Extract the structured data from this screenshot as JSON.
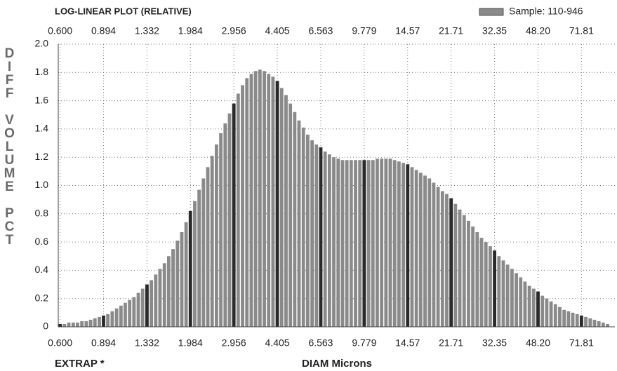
{
  "chart_data": {
    "type": "bar",
    "title": "LOG-LINEAR PLOT (RELATIVE)",
    "x_label": "DIAM Microns",
    "y_label": "DIFF VOLUME PCT",
    "annotation": "EXTRAP *",
    "xscale": "log",
    "grid": true,
    "legend": "upper right",
    "tick_bar_color": "#2a2a2a",
    "xlim": [
      0.59,
      97.6
    ],
    "ylim": [
      0,
      2
    ],
    "xticks": [
      {
        "value": 0.6,
        "label": "0.600"
      },
      0.894,
      1.332,
      1.984,
      2.956,
      4.405,
      6.563,
      9.779,
      14.57,
      21.71,
      32.35,
      {
        "value": 48.2,
        "label": "48.20"
      },
      71.81
    ],
    "yticks": [
      0,
      0.2,
      0.4,
      0.6,
      0.8,
      {
        "value": 1,
        "label": "1.0"
      },
      1.2,
      1.4,
      1.6,
      1.8,
      {
        "value": 2,
        "label": "2.0"
      }
    ],
    "x": [
      0.6,
      0.624,
      0.65,
      0.677,
      0.704,
      0.733,
      0.763,
      0.794,
      0.826,
      0.86,
      0.894,
      0.93,
      0.968,
      1.008,
      1.049,
      1.091,
      1.136,
      1.182,
      1.23,
      1.28,
      1.332,
      1.386,
      1.443,
      1.501,
      1.563,
      1.626,
      1.692,
      1.761,
      1.833,
      1.907,
      1.984,
      2.065,
      2.149,
      2.236,
      2.327,
      2.422,
      2.521,
      2.623,
      2.73,
      2.841,
      2.956,
      3.076,
      3.202,
      3.332,
      3.468,
      3.609,
      3.756,
      3.909,
      4.068,
      4.233,
      4.405,
      4.584,
      4.771,
      4.965,
      5.167,
      5.377,
      5.596,
      5.824,
      6.061,
      6.308,
      6.563,
      6.83,
      7.108,
      7.398,
      7.699,
      8.012,
      8.338,
      8.678,
      9.031,
      9.398,
      9.779,
      10.18,
      10.59,
      11.02,
      11.47,
      11.94,
      12.42,
      12.93,
      13.45,
      14.0,
      14.57,
      15.16,
      15.78,
      16.42,
      17.09,
      17.79,
      18.51,
      19.26,
      20.05,
      20.86,
      21.71,
      22.59,
      23.51,
      24.47,
      25.47,
      26.5,
      27.58,
      28.7,
      29.87,
      31.09,
      32.35,
      33.67,
      35.04,
      36.46,
      37.95,
      39.49,
      41.1,
      42.77,
      44.51,
      46.32,
      48.2,
      50.16,
      52.21,
      54.33,
      56.54,
      58.84,
      61.24,
      63.73,
      66.32,
      69.02,
      71.81,
      74.74,
      77.78,
      80.94,
      84.23,
      87.66,
      91.23
    ],
    "series": [
      {
        "name": "Sample: 110-946",
        "color": "#8a8a8a",
        "values": [
          0.02,
          0.02,
          0.03,
          0.03,
          0.03,
          0.04,
          0.04,
          0.05,
          0.06,
          0.07,
          0.08,
          0.09,
          0.11,
          0.13,
          0.15,
          0.17,
          0.19,
          0.21,
          0.24,
          0.27,
          0.3,
          0.33,
          0.37,
          0.41,
          0.45,
          0.5,
          0.55,
          0.61,
          0.67,
          0.74,
          0.82,
          0.89,
          0.97,
          1.05,
          1.13,
          1.21,
          1.29,
          1.37,
          1.44,
          1.51,
          1.58,
          1.65,
          1.71,
          1.76,
          1.79,
          1.81,
          1.82,
          1.81,
          1.79,
          1.77,
          1.74,
          1.69,
          1.64,
          1.58,
          1.52,
          1.46,
          1.41,
          1.36,
          1.32,
          1.29,
          1.27,
          1.24,
          1.22,
          1.2,
          1.19,
          1.18,
          1.18,
          1.18,
          1.18,
          1.18,
          1.18,
          1.18,
          1.18,
          1.19,
          1.19,
          1.19,
          1.19,
          1.18,
          1.17,
          1.16,
          1.15,
          1.13,
          1.11,
          1.09,
          1.07,
          1.05,
          1.02,
          0.99,
          0.96,
          0.94,
          0.91,
          0.87,
          0.83,
          0.79,
          0.75,
          0.71,
          0.67,
          0.63,
          0.6,
          0.57,
          0.54,
          0.5,
          0.47,
          0.44,
          0.41,
          0.38,
          0.35,
          0.32,
          0.29,
          0.27,
          0.25,
          0.22,
          0.2,
          0.18,
          0.16,
          0.14,
          0.12,
          0.11,
          0.1,
          0.09,
          0.08,
          0.07,
          0.06,
          0.05,
          0.04,
          0.03,
          0.02
        ]
      }
    ]
  }
}
